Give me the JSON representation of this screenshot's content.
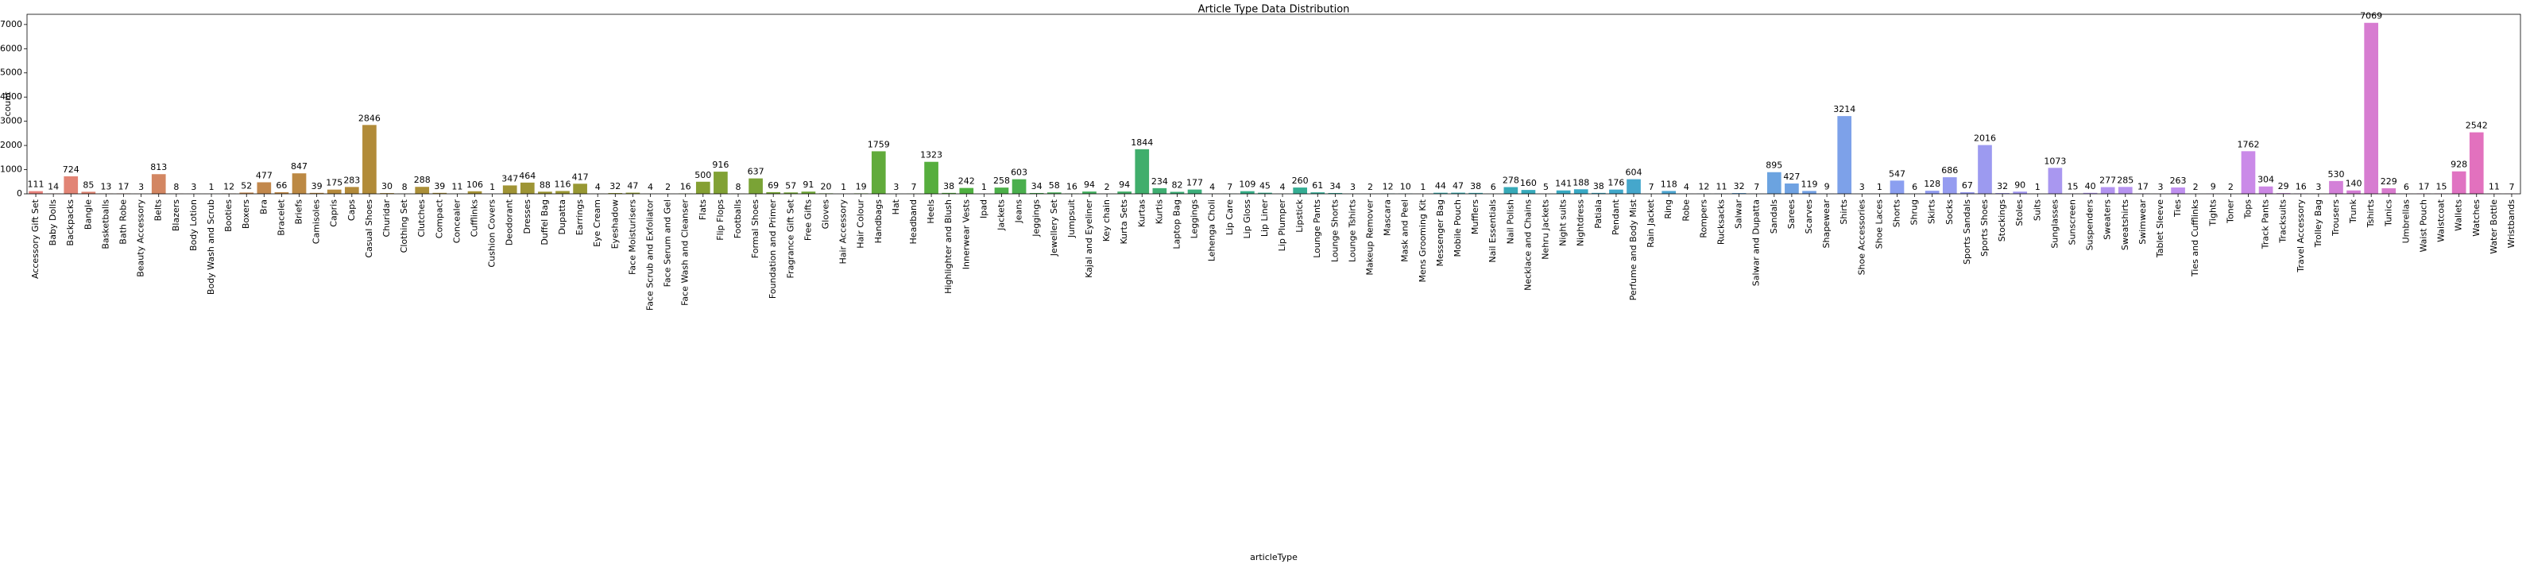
{
  "chart_data": {
    "type": "bar",
    "title": "Article Type Data Distribution",
    "x_label": "articleType",
    "y_label": "count",
    "categories": [
      "Accessory Gift Set",
      "Baby Dolls",
      "Backpacks",
      "Bangle",
      "Basketballs",
      "Bath Robe",
      "Beauty Accessory",
      "Belts",
      "Blazers",
      "Body Lotion",
      "Body Wash and Scrub",
      "Booties",
      "Boxers",
      "Bra",
      "Bracelet",
      "Briefs",
      "Camisoles",
      "Capris",
      "Caps",
      "Casual Shoes",
      "Churidar",
      "Clothing Set",
      "Clutches",
      "Compact",
      "Concealer",
      "Cufflinks",
      "Cushion Covers",
      "Deodorant",
      "Dresses",
      "Duffel Bag",
      "Dupatta",
      "Earrings",
      "Eye Cream",
      "Eyeshadow",
      "Face Moisturisers",
      "Face Scrub and Exfoliator",
      "Face Serum and Gel",
      "Face Wash and Cleanser",
      "Flats",
      "Flip Flops",
      "Footballs",
      "Formal Shoes",
      "Foundation and Primer",
      "Fragrance Gift Set",
      "Free Gifts",
      "Gloves",
      "Hair Accessory",
      "Hair Colour",
      "Handbags",
      "Hat",
      "Headband",
      "Heels",
      "Highlighter and Blush",
      "Innerwear Vests",
      "Ipad",
      "Jackets",
      "Jeans",
      "Jeggings",
      "Jewellery Set",
      "Jumpsuit",
      "Kajal and Eyeliner",
      "Key chain",
      "Kurta Sets",
      "Kurtas",
      "Kurtis",
      "Laptop Bag",
      "Leggings",
      "Lehenga Choli",
      "Lip Care",
      "Lip Gloss",
      "Lip Liner",
      "Lip Plumper",
      "Lipstick",
      "Lounge Pants",
      "Lounge Shorts",
      "Lounge Tshirts",
      "Makeup Remover",
      "Mascara",
      "Mask and Peel",
      "Mens Grooming Kit",
      "Messenger Bag",
      "Mobile Pouch",
      "Mufflers",
      "Nail Essentials",
      "Nail Polish",
      "Necklace and Chains",
      "Nehru Jackets",
      "Night suits",
      "Nightdress",
      "Patiala",
      "Pendant",
      "Perfume and Body Mist",
      "Rain Jacket",
      "Ring",
      "Robe",
      "Rompers",
      "Rucksacks",
      "Salwar",
      "Salwar and Dupatta",
      "Sandals",
      "Sarees",
      "Scarves",
      "Shapewear",
      "Shirts",
      "Shoe Accessories",
      "Shoe Laces",
      "Shorts",
      "Shrug",
      "Skirts",
      "Socks",
      "Sports Sandals",
      "Sports Shoes",
      "Stockings",
      "Stoles",
      "Suits",
      "Sunglasses",
      "Sunscreen",
      "Suspenders",
      "Sweaters",
      "Sweatshirts",
      "Swimwear",
      "Tablet Sleeve",
      "Ties",
      "Ties and Cufflinks",
      "Tights",
      "Toner",
      "Tops",
      "Track Pants",
      "Tracksuits",
      "Travel Accessory",
      "Trolley Bag",
      "Trousers",
      "Trunk",
      "Tshirts",
      "Tunics",
      "Umbrellas",
      "Waist Pouch",
      "Waistcoat",
      "Wallets",
      "Watches",
      "Water Bottle",
      "Wristbands"
    ],
    "values": [
      111,
      14,
      724,
      85,
      13,
      17,
      3,
      813,
      8,
      3,
      1,
      12,
      52,
      477,
      66,
      847,
      39,
      175,
      283,
      2846,
      30,
      8,
      288,
      39,
      11,
      106,
      1,
      347,
      464,
      88,
      116,
      417,
      4,
      32,
      47,
      4,
      2,
      16,
      500,
      916,
      8,
      637,
      69,
      57,
      91,
      20,
      1,
      19,
      1759,
      3,
      7,
      1323,
      38,
      242,
      1,
      258,
      603,
      34,
      58,
      16,
      94,
      2,
      94,
      1844,
      234,
      82,
      177,
      4,
      7,
      109,
      45,
      4,
      260,
      61,
      34,
      3,
      2,
      12,
      10,
      1,
      44,
      47,
      38,
      6,
      278,
      160,
      5,
      141,
      188,
      38,
      176,
      604,
      7,
      118,
      4,
      12,
      11,
      32,
      7,
      895,
      427,
      119,
      9,
      3214,
      3,
      1,
      547,
      6,
      128,
      686,
      67,
      2016,
      32,
      90,
      1,
      1073,
      15,
      40,
      277,
      285,
      17,
      3,
      263,
      2,
      9,
      2,
      1762,
      304,
      29,
      16,
      3,
      530,
      140,
      7069,
      229,
      6,
      17,
      15,
      928,
      2542,
      11,
      7
    ],
    "palette": [
      "#e8837d",
      "#b48a3a",
      "#8f9d31",
      "#4fb03f",
      "#35ad8e",
      "#38a9c5",
      "#8a9ff0",
      "#c58ff0",
      "#e66db8"
    ],
    "ylim": [
      0,
      7422
    ],
    "yticks": [
      0,
      1000,
      2000,
      3000,
      4000,
      5000,
      6000,
      7000
    ]
  }
}
